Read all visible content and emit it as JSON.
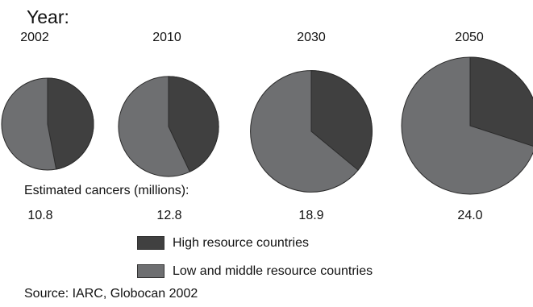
{
  "chart_data": {
    "type": "pie",
    "title": "Year:",
    "caption": "Estimated cancers (millions):",
    "source": "Source:  IARC, Globocan 2002",
    "colors": {
      "high": "#404040",
      "low": "#6e6f71",
      "edge": "#2a2a2a"
    },
    "legend": [
      {
        "label": "High resource countries",
        "color": "#404040"
      },
      {
        "label": "Low and middle resource countries",
        "color": "#6e6f71"
      }
    ],
    "pies": [
      {
        "year": "2002",
        "total": "10.8",
        "high_share": 0.47,
        "low_share": 0.53
      },
      {
        "year": "2010",
        "total": "12.8",
        "high_share": 0.43,
        "low_share": 0.57
      },
      {
        "year": "2030",
        "total": "18.9",
        "high_share": 0.36,
        "low_share": 0.64
      },
      {
        "year": "2050",
        "total": "24.0",
        "high_share": 0.3,
        "low_share": 0.7
      }
    ]
  }
}
